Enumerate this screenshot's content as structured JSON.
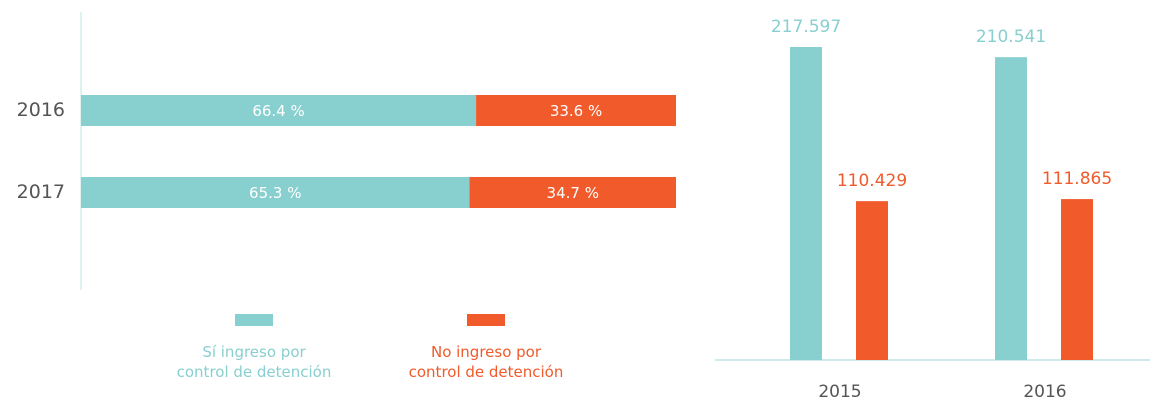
{
  "chart_data": [
    {
      "type": "bar",
      "orientation": "horizontal",
      "stacked": true,
      "categories": [
        "2016",
        "2017"
      ],
      "series": [
        {
          "name": "Sí ingreso por control de detención",
          "color": "#88cfcf",
          "values": [
            66.4,
            65.3
          ],
          "value_labels": [
            "66.4 %",
            "65.3 %"
          ]
        },
        {
          "name": "No ingreso por control de detención",
          "color": "#f15a2b",
          "values": [
            33.6,
            34.7
          ],
          "value_labels": [
            "33.6 %",
            "34.7 %"
          ]
        }
      ]
    },
    {
      "type": "bar",
      "orientation": "vertical",
      "stacked": false,
      "categories": [
        "2015",
        "2016"
      ],
      "series": [
        {
          "color": "#88cfcf",
          "values": [
            217597,
            210541
          ],
          "value_labels": [
            "217.597",
            "210.541"
          ]
        },
        {
          "color": "#f15a2b",
          "values": [
            110429,
            111865
          ],
          "value_labels": [
            "110.429",
            "111.865"
          ]
        }
      ]
    }
  ]
}
